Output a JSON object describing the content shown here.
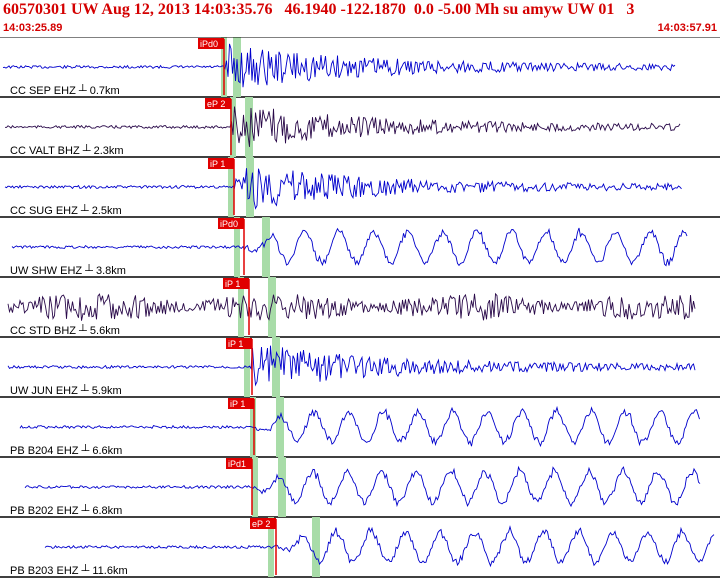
{
  "header": {
    "title": "60570301 UW Aug 12, 2013 14:03:35.76   46.1940 -122.1870  0.0 -5.00 Mh su amyw UW 01   3",
    "start_time": "14:03:25.89",
    "end_time": "14:03:57.91"
  },
  "colors": {
    "title": "#d40000",
    "trace_blue": "#0000cc",
    "trace_purple": "#2a0a4a",
    "pick_red": "#e00000",
    "pick_window": "#a8dca8",
    "grid": "#000000"
  },
  "traces": [
    {
      "label": "CC SEP EHZ",
      "distance": "0.7km",
      "pick": "iPd0",
      "color": "blue",
      "style": "impulsive"
    },
    {
      "label": "CC VALT BHZ",
      "distance": "2.3km",
      "pick": "eP 2",
      "color": "purple",
      "style": "impulsive"
    },
    {
      "label": "CC SUG EHZ",
      "distance": "2.5km",
      "pick": "iP 1",
      "color": "blue",
      "style": "impulsive"
    },
    {
      "label": "UW SHW EHZ",
      "distance": "3.8km",
      "pick": "iPd0",
      "color": "blue",
      "style": "wave"
    },
    {
      "label": "CC STD BHZ",
      "distance": "5.6km",
      "pick": "iP 1",
      "color": "purple",
      "style": "noisy"
    },
    {
      "label": "UW JUN EHZ",
      "distance": "5.9km",
      "pick": "iP 1",
      "color": "blue",
      "style": "impulsive"
    },
    {
      "label": "PB B204 EHZ",
      "distance": "6.6km",
      "pick": "iP 1",
      "color": "blue",
      "style": "wave"
    },
    {
      "label": "PB B202 EHZ",
      "distance": "6.8km",
      "pick": "iPd1",
      "color": "blue",
      "style": "wave"
    },
    {
      "label": "PB B203 EHZ",
      "distance": "11.6km",
      "pick": "eP 2",
      "color": "blue",
      "style": "wave"
    }
  ]
}
